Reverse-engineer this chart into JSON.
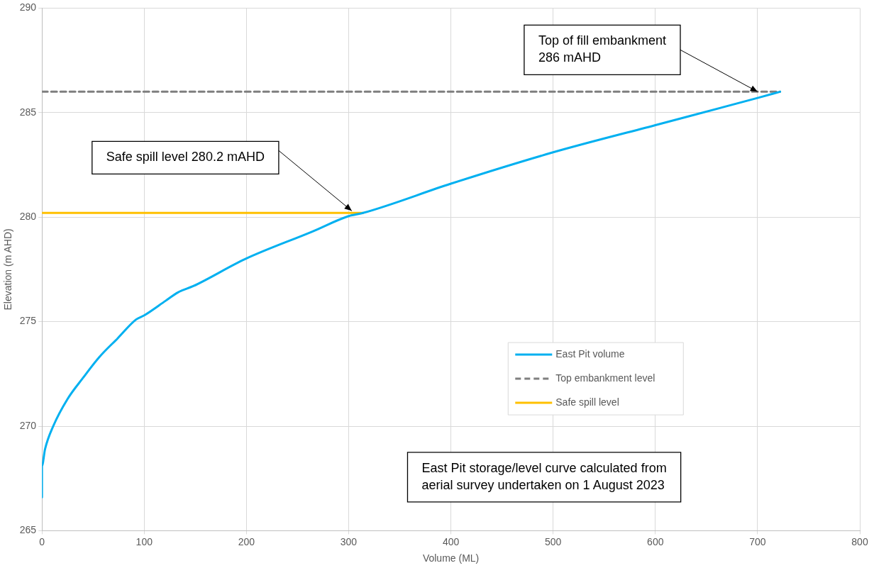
{
  "chart_data": {
    "type": "line",
    "xlabel": "Volume (ML)",
    "ylabel": "Elevation (m AHD)",
    "xlim": [
      0,
      800
    ],
    "xticks": [
      0,
      100,
      200,
      300,
      400,
      500,
      600,
      700,
      800
    ],
    "ylim": [
      265,
      290
    ],
    "yticks": [
      265,
      270,
      275,
      280,
      285,
      290
    ],
    "grid": true,
    "legend": "right",
    "marker": "none",
    "series": [
      {
        "name": "East Pit volume",
        "color": "#00b0f0",
        "line_style": "solid",
        "x": [
          0,
          0,
          3,
          11,
          25,
          40,
          56,
          74,
          92,
          100,
          121,
          133,
          148,
          199,
          264,
          300,
          314,
          400,
          500,
          600,
          700,
          722
        ],
        "values": [
          266.6,
          268.1,
          268.9,
          270.0,
          271.3,
          272.3,
          273.3,
          274.2,
          275.1,
          275.3,
          276.0,
          276.4,
          276.7,
          278.0,
          279.3,
          280.05,
          280.2,
          281.6,
          283.1,
          284.4,
          285.7,
          286
        ]
      },
      {
        "name": "Top embankment level",
        "color": "#7f7f7f",
        "line_style": "dashed",
        "x": [
          0,
          722
        ],
        "values": [
          286,
          286
        ]
      },
      {
        "name": "Safe spill level",
        "color": "#ffc000",
        "line_style": "solid",
        "x": [
          0,
          314
        ],
        "values": [
          280.2,
          280.2
        ]
      }
    ],
    "annotations": [
      {
        "text": "Top of fill embankment\n286 mAHD",
        "x": 700,
        "y": 286
      },
      {
        "text": "Safe spill level 280.2 mAHD",
        "x": 303,
        "y": 280.3
      },
      "East Pit storage/level curve calculated from\naerial survey undertaken on 1 August 2023"
    ]
  }
}
